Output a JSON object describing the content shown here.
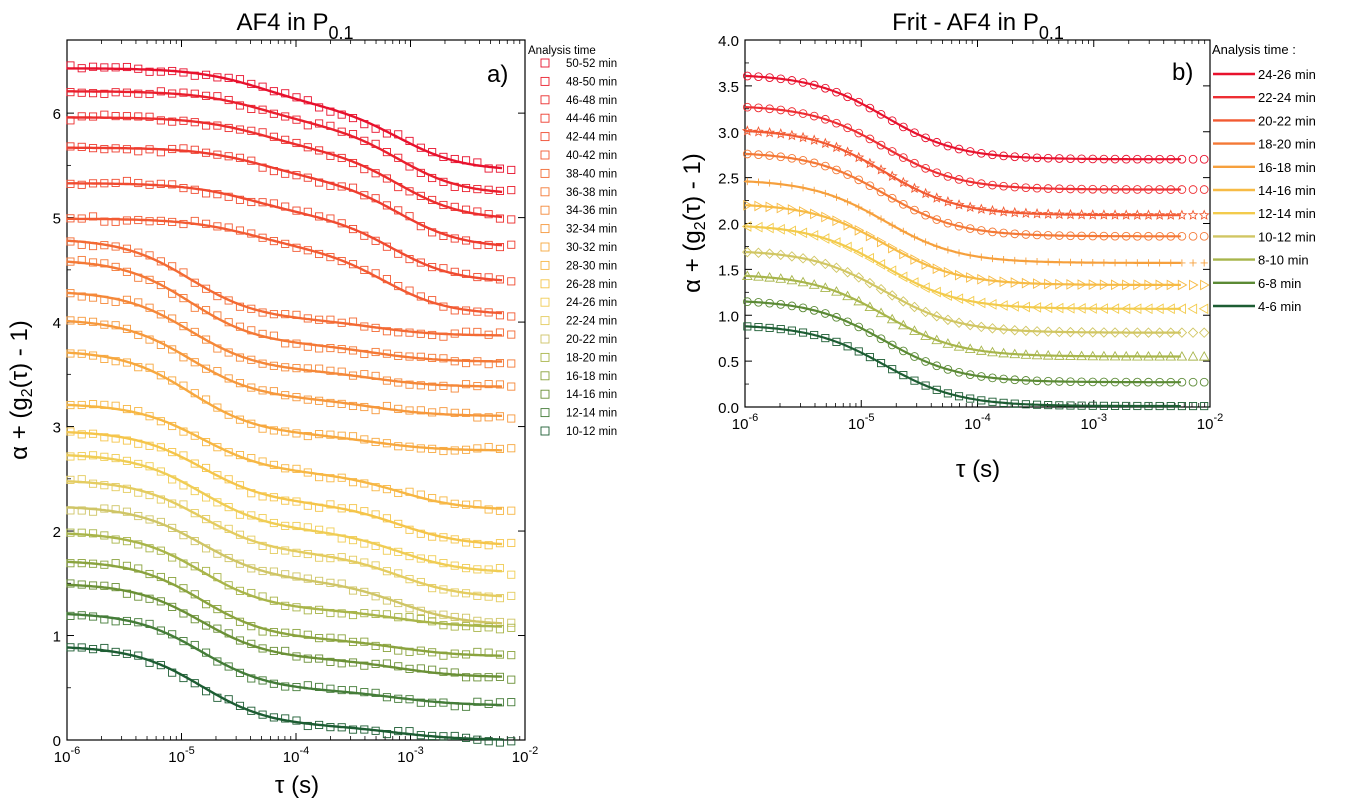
{
  "chart_data": [
    {
      "type": "scatter",
      "panel_label": "a)",
      "title": "AF4 in P",
      "title_sub": "0.1",
      "xlabel": "τ (s)",
      "ylabel": "α + (g",
      "ylabel_sub": "2",
      "ylabel_end": "(τ) - 1)",
      "x_scale": "log",
      "xlim": [
        1e-06,
        0.01
      ],
      "ylim": [
        0,
        6.7
      ],
      "x_ticks": [
        "10",
        "10",
        "10",
        "10",
        "10"
      ],
      "x_tick_exponents": [
        "-6",
        "-5",
        "-4",
        "-3",
        "-2"
      ],
      "y_ticks": [
        "0",
        "1",
        "2",
        "3",
        "4",
        "5",
        "6"
      ],
      "grid": false,
      "marker": "open-square",
      "legend_title": "Analysis time",
      "legend_position": "right",
      "series": [
        {
          "name": "50-52 min",
          "color": "#e8112d",
          "start": 6.43,
          "mid": 6.06,
          "end": 5.45,
          "tau1": 5e-05,
          "tau2": 0.0008
        },
        {
          "name": "48-50 min",
          "color": "#ea1f2d",
          "start": 6.21,
          "mid": 5.88,
          "end": 5.22,
          "tau1": 5e-05,
          "tau2": 0.0008
        },
        {
          "name": "46-48 min",
          "color": "#ec2d2d",
          "start": 5.96,
          "mid": 5.64,
          "end": 4.98,
          "tau1": 5e-05,
          "tau2": 0.0008
        },
        {
          "name": "44-46 min",
          "color": "#ee3c2e",
          "start": 5.67,
          "mid": 5.36,
          "end": 4.71,
          "tau1": 5e-05,
          "tau2": 0.0008
        },
        {
          "name": "42-44 min",
          "color": "#f04b30",
          "start": 5.33,
          "mid": 5.02,
          "end": 4.38,
          "tau1": 4e-05,
          "tau2": 0.0007
        },
        {
          "name": "40-42 min",
          "color": "#f25a32",
          "start": 4.99,
          "mid": 4.7,
          "end": 4.07,
          "tau1": 4e-05,
          "tau2": 0.0006
        },
        {
          "name": "38-40 min",
          "color": "#f36a34",
          "start": 4.8,
          "mid": 4.02,
          "end": 3.87,
          "tau1": 1.2e-05,
          "tau2": 0.0005
        },
        {
          "name": "36-38 min",
          "color": "#f47936",
          "start": 4.6,
          "mid": 3.78,
          "end": 3.62,
          "tau1": 1.2e-05,
          "tau2": 0.0005
        },
        {
          "name": "34-36 min",
          "color": "#f58839",
          "start": 4.3,
          "mid": 3.53,
          "end": 3.38,
          "tau1": 1.2e-05,
          "tau2": 0.0005
        },
        {
          "name": "32-34 min",
          "color": "#f6983c",
          "start": 4.03,
          "mid": 3.26,
          "end": 3.1,
          "tau1": 1.2e-05,
          "tau2": 0.0005
        },
        {
          "name": "30-32 min",
          "color": "#f7a83f",
          "start": 3.73,
          "mid": 2.92,
          "end": 2.77,
          "tau1": 1.2e-05,
          "tau2": 0.0005
        },
        {
          "name": "28-30 min",
          "color": "#f7b744",
          "start": 3.22,
          "mid": 2.55,
          "end": 2.2,
          "tau1": 1.5e-05,
          "tau2": 0.0008
        },
        {
          "name": " 26-28 min",
          "color": "#f5c54a",
          "start": 2.96,
          "mid": 2.26,
          "end": 1.86,
          "tau1": 1.5e-05,
          "tau2": 0.0008
        },
        {
          "name": "24-26 min",
          "color": "#f0cd55",
          "start": 2.74,
          "mid": 2.0,
          "end": 1.6,
          "tau1": 1.5e-05,
          "tau2": 0.0008
        },
        {
          "name": "22-24 min",
          "color": "#e4cc60",
          "start": 2.49,
          "mid": 1.78,
          "end": 1.36,
          "tau1": 1.5e-05,
          "tau2": 0.0008
        },
        {
          "name": "20-22 min",
          "color": "#cfc566",
          "start": 2.24,
          "mid": 1.52,
          "end": 1.1,
          "tau1": 1.5e-05,
          "tau2": 0.0008
        },
        {
          "name": "18-20 min",
          "color": "#a9b54a",
          "start": 1.99,
          "mid": 1.24,
          "end": 1.08,
          "tau1": 1.5e-05,
          "tau2": 0.0008
        },
        {
          "name": "16-18 min",
          "color": "#8aa33e",
          "start": 1.72,
          "mid": 0.96,
          "end": 0.8,
          "tau1": 1.5e-05,
          "tau2": 0.0008
        },
        {
          "name": "14-16 min",
          "color": "#6a9036",
          "start": 1.5,
          "mid": 0.77,
          "end": 0.6,
          "tau1": 1.5e-05,
          "tau2": 0.0008
        },
        {
          "name": "12-14 min",
          "color": "#447c38",
          "start": 1.22,
          "mid": 0.47,
          "end": 0.33,
          "tau1": 1.5e-05,
          "tau2": 0.0008
        },
        {
          "name": "10-12 min",
          "color": "#1d5d33",
          "start": 0.9,
          "mid": 0.13,
          "end": 0.0,
          "tau1": 1.5e-05,
          "tau2": 0.0008
        }
      ]
    },
    {
      "type": "scatter",
      "panel_label": "b)",
      "title": "Frit - AF4 in P",
      "title_sub": "0.1",
      "xlabel": "τ (s)",
      "ylabel": "α + (g",
      "ylabel_sub": "2",
      "ylabel_end": "(τ) - 1)",
      "x_scale": "log",
      "xlim": [
        1e-06,
        0.01
      ],
      "ylim": [
        0,
        4.0
      ],
      "x_ticks": [
        "10",
        "10",
        "10",
        "10",
        "10"
      ],
      "x_tick_exponents": [
        "-6",
        "-5",
        "-4",
        "-3",
        "-2"
      ],
      "y_ticks": [
        "0.0",
        "0.5",
        "1.0",
        "1.5",
        "2.0",
        "2.5",
        "3.0",
        "3.5",
        "4.0"
      ],
      "grid": false,
      "legend_title": "Analysis time :",
      "legend_position": "right",
      "series": [
        {
          "name": "24-26 min",
          "color": "#e8112d",
          "marker": "open-circle",
          "start": 3.63,
          "end": 2.7,
          "tau": 1.6e-05
        },
        {
          "name": "22-24 min",
          "color": "#ee2e33",
          "marker": "open-circle",
          "start": 3.29,
          "end": 2.37,
          "tau": 1.6e-05
        },
        {
          "name": "20-22 min",
          "color": "#f25a32",
          "marker": "star",
          "start": 3.03,
          "end": 2.09,
          "tau": 1.6e-05
        },
        {
          "name": "18-20 min",
          "color": "#f47936",
          "marker": "open-circle",
          "start": 2.78,
          "end": 1.86,
          "tau": 1.6e-05
        },
        {
          "name": "16-18 min",
          "color": "#f6a03d",
          "marker": "plus",
          "start": 2.48,
          "end": 1.57,
          "tau": 1.6e-05
        },
        {
          "name": "14-16 min",
          "color": "#f7bb45",
          "marker": "triangle-right",
          "start": 2.22,
          "end": 1.33,
          "tau": 1.6e-05
        },
        {
          "name": "12-14 min",
          "color": "#f3cb4c",
          "marker": "triangle-left",
          "start": 1.99,
          "end": 1.07,
          "tau": 1.6e-05
        },
        {
          "name": "10-12 min",
          "color": "#d1c663",
          "marker": "diamond",
          "start": 1.71,
          "end": 0.81,
          "tau": 1.6e-05
        },
        {
          "name": "8-10 min",
          "color": "#a7b54b",
          "marker": "triangle-up",
          "start": 1.45,
          "end": 0.55,
          "tau": 1.6e-05
        },
        {
          "name": "6-8 min",
          "color": "#5b8a35",
          "marker": "open-circle",
          "start": 1.17,
          "end": 0.27,
          "tau": 1.6e-05
        },
        {
          "name": "4-6 min",
          "color": "#1d5d33",
          "marker": "open-square",
          "start": 0.9,
          "end": 0.01,
          "tau": 1.6e-05
        }
      ]
    }
  ]
}
